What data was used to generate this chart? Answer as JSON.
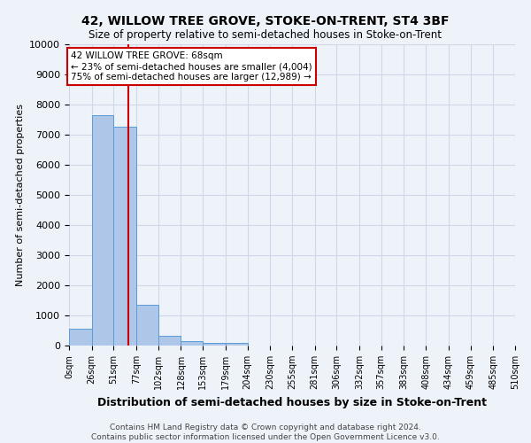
{
  "title": "42, WILLOW TREE GROVE, STOKE-ON-TRENT, ST4 3BF",
  "subtitle": "Size of property relative to semi-detached houses in Stoke-on-Trent",
  "xlabel": "Distribution of semi-detached houses by size in Stoke-on-Trent",
  "ylabel": "Number of semi-detached properties",
  "footer_line1": "Contains HM Land Registry data © Crown copyright and database right 2024.",
  "footer_line2": "Contains public sector information licensed under the Open Government Licence v3.0.",
  "bin_labels": [
    "0sqm",
    "26sqm",
    "51sqm",
    "77sqm",
    "102sqm",
    "128sqm",
    "153sqm",
    "179sqm",
    "204sqm",
    "230sqm",
    "255sqm",
    "281sqm",
    "306sqm",
    "332sqm",
    "357sqm",
    "383sqm",
    "408sqm",
    "434sqm",
    "459sqm",
    "485sqm",
    "510sqm"
  ],
  "bar_values": [
    560,
    7650,
    7250,
    1350,
    310,
    160,
    100,
    80,
    0,
    0,
    0,
    0,
    0,
    0,
    0,
    0,
    0,
    0,
    0,
    0
  ],
  "bar_color": "#aec6e8",
  "bar_edge_color": "#5b9bd5",
  "property_size": 68,
  "annotation_title": "42 WILLOW TREE GROVE: 68sqm",
  "annotation_line1": "← 23% of semi-detached houses are smaller (4,004)",
  "annotation_line2": "75% of semi-detached houses are larger (12,989) →",
  "annotation_box_color": "#ffffff",
  "annotation_box_edge": "#cc0000",
  "vline_color": "#cc0000",
  "ylim": [
    0,
    10000
  ],
  "yticks": [
    0,
    1000,
    2000,
    3000,
    4000,
    5000,
    6000,
    7000,
    8000,
    9000,
    10000
  ],
  "grid_color": "#d0d8e8",
  "background_color": "#eef2f9",
  "bin_edges": [
    0,
    26,
    51,
    77,
    102,
    128,
    153,
    179,
    204,
    230,
    255,
    281,
    306,
    332,
    357,
    383,
    408,
    434,
    459,
    485,
    510
  ]
}
